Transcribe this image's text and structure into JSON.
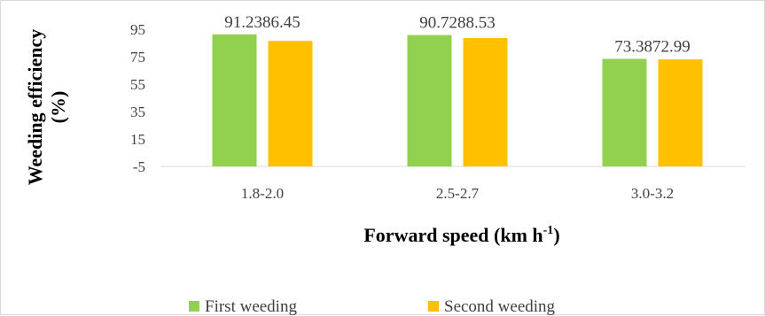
{
  "chart_data": {
    "type": "bar",
    "categories": [
      "1.8-2.0",
      "2.5-2.7",
      "3.0-3.2"
    ],
    "series": [
      {
        "name": "First weeding",
        "values": [
          91.23,
          90.72,
          73.38
        ],
        "labels": [
          "91.23",
          "90.72",
          "73.38"
        ],
        "color": "#92d050"
      },
      {
        "name": "Second weeding",
        "values": [
          86.45,
          88.53,
          72.99
        ],
        "labels": [
          "86.45",
          "88.53",
          "72.99"
        ],
        "color": "#ffc000"
      }
    ],
    "xlabel": "Forward speed (km h",
    "xlabel_sup": "-1",
    "xlabel_close": ")",
    "ylabel_line1": "Weeding efficiency",
    "ylabel_line2": "(%)",
    "yticks": [
      95,
      75,
      55,
      35,
      15,
      -5
    ],
    "ylim": [
      -5,
      95
    ],
    "grid": false,
    "legend_position": "bottom"
  }
}
